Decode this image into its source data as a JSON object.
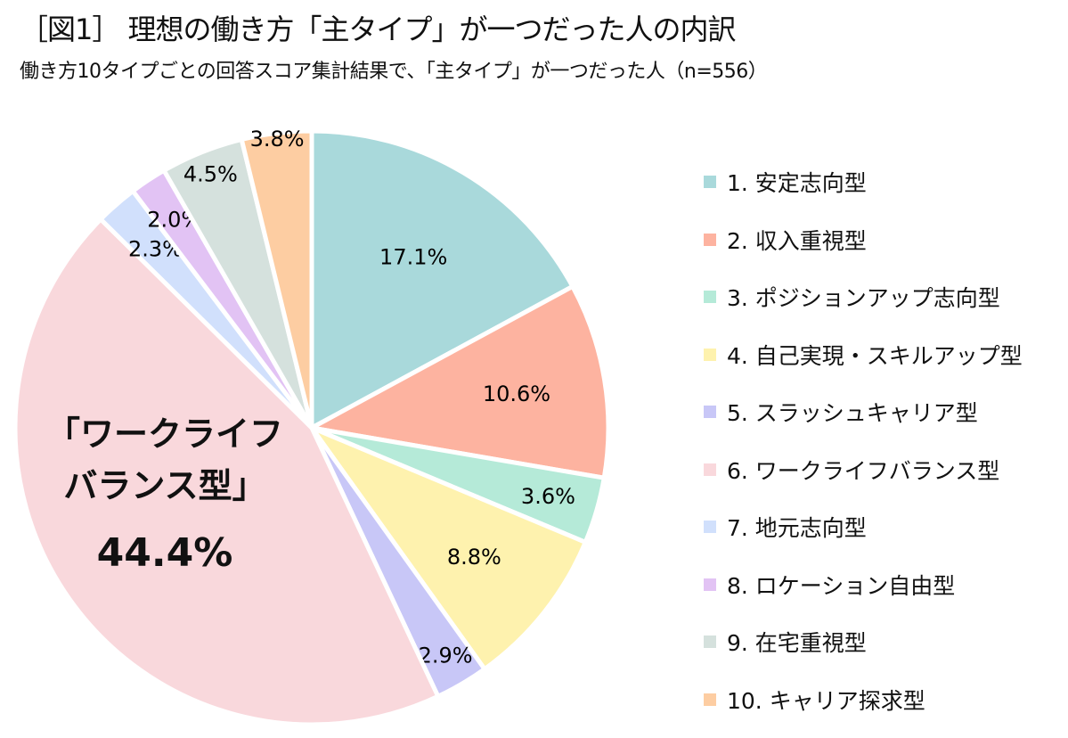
{
  "chart_data": {
    "type": "pie",
    "title": "［図1］ 理想の働き方「主タイプ」が一つだった人の内訳",
    "subtitle": "働き方10タイプごとの回答スコア集計結果で、「主タイプ」が一つだった人（n=556）",
    "legend_position": "right",
    "categories": [
      "1. 安定志向型",
      "2. 収入重視型",
      "3. ポジションアップ志向型",
      "4. 自己実現・スキルアップ型",
      "5. スラッシュキャリア型",
      "6. ワークライフバランス型",
      "7. 地元志向型",
      "8. ロケーション自由型",
      "9. 在宅重視型",
      "10. キャリア探求型"
    ],
    "values": [
      17.1,
      10.6,
      3.6,
      8.8,
      2.9,
      44.4,
      2.3,
      2.0,
      4.5,
      3.8
    ],
    "labels": [
      "17.1%",
      "10.6%",
      "3.6%",
      "8.8%",
      "2.9%",
      "44.4%",
      "2.3%",
      "2.0%",
      "4.5%",
      "3.8%"
    ],
    "colors": [
      "#A9D9DB",
      "#FDB3A0",
      "#B5EAD8",
      "#FEF2AE",
      "#C8C7F7",
      "#F9D8DC",
      "#D1E0FC",
      "#E2C3F4",
      "#D5E1DD",
      "#FDCDA2"
    ],
    "highlight": {
      "name_line1": "「ワークライフ",
      "name_line2": "バランス型」",
      "value": "44.4%"
    }
  }
}
